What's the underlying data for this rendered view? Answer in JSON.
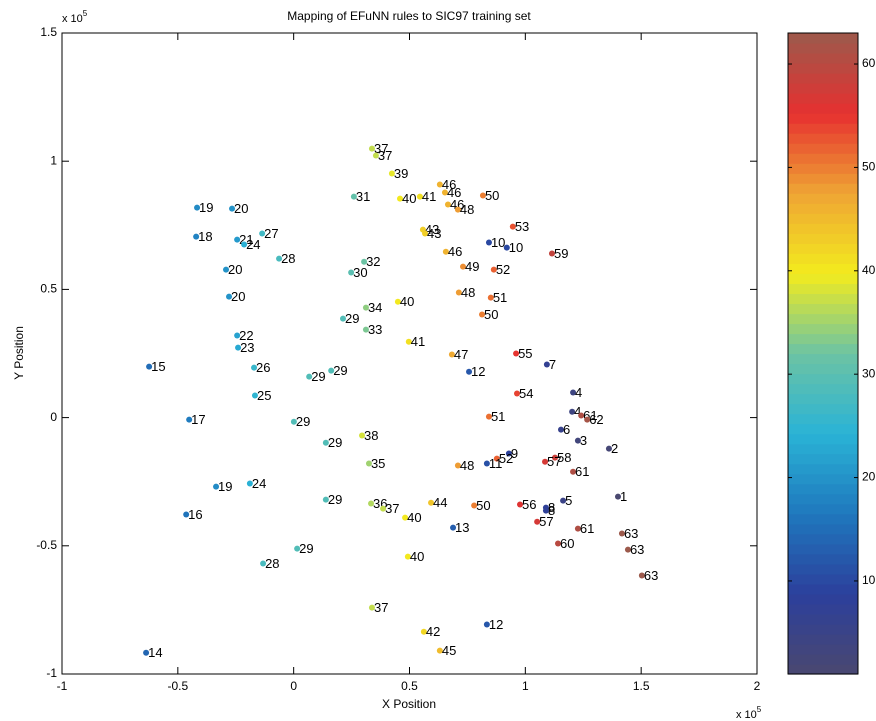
{
  "chart_data": {
    "type": "scatter",
    "title": "Mapping of EFuNN rules to SIC97 training set",
    "x_label": "X Position",
    "y_label": "Y Position",
    "axis_multiplier": {
      "base": "x 10",
      "exponent": "5"
    },
    "xlim": [
      -1,
      2
    ],
    "ylim": [
      -1,
      1.5
    ],
    "xticks": [
      -1,
      -0.5,
      0,
      0.5,
      1,
      1.5,
      2
    ],
    "yticks": [
      -1,
      -0.5,
      0,
      0.5,
      1,
      1.5
    ],
    "colorbar": {
      "lim": [
        1,
        63
      ],
      "ticks": [
        10,
        20,
        30,
        40,
        50,
        60
      ]
    },
    "colormap": [
      "#4a4870",
      "#2c3f9c",
      "#1f78bd",
      "#2ab3d6",
      "#6cc3a4",
      "#f3eb1e",
      "#efa534",
      "#e63030",
      "#9c5a4c"
    ],
    "x": [
      0.338,
      0.355,
      0.424,
      0.26,
      0.459,
      0.545,
      0.631,
      0.653,
      0.666,
      0.709,
      0.817,
      0.946,
      -0.417,
      -0.266,
      -0.136,
      -0.421,
      -0.244,
      -0.214,
      -0.063,
      -0.292,
      0.304,
      0.248,
      0.558,
      0.567,
      0.843,
      0.92,
      1.115,
      0.657,
      0.731,
      0.864,
      -0.279,
      0.713,
      0.851,
      0.45,
      0.312,
      0.213,
      0.813,
      0.312,
      -0.244,
      -0.24,
      0.497,
      0.683,
      0.96,
      1.093,
      -0.624,
      -0.171,
      0.162,
      0.067,
      0.757,
      1.206,
      -0.167,
      0.964,
      1.202,
      1.241,
      1.267,
      0.843,
      -0.451,
      0.001,
      1.154,
      1.227,
      1.361,
      0.139,
      0.295,
      0.929,
      0.877,
      1.128,
      1.085,
      0.325,
      0.709,
      0.834,
      1.206,
      -0.335,
      -0.189,
      1.4,
      1.163,
      0.139,
      0.334,
      0.386,
      0.593,
      0.779,
      0.977,
      1.089,
      1.089,
      -0.464,
      0.481,
      1.051,
      0.688,
      1.227,
      1.417,
      1.141,
      1.443,
      0.015,
      0.493,
      -0.132,
      1.503,
      0.338,
      0.834,
      0.562,
      0.631,
      -0.637
    ],
    "values": [
      1.049,
      1.022,
      0.952,
      0.862,
      0.854,
      0.862,
      0.909,
      0.878,
      0.831,
      0.811,
      0.866,
      0.745,
      0.819,
      0.815,
      0.718,
      0.706,
      0.694,
      0.675,
      0.62,
      0.577,
      0.608,
      0.566,
      0.733,
      0.718,
      0.683,
      0.663,
      0.64,
      0.647,
      0.589,
      0.577,
      0.472,
      0.488,
      0.468,
      0.452,
      0.429,
      0.386,
      0.402,
      0.343,
      0.32,
      0.273,
      0.296,
      0.246,
      0.25,
      0.207,
      0.199,
      0.195,
      0.183,
      0.16,
      0.179,
      0.098,
      0.086,
      0.094,
      0.023,
      0.008,
      -0.008,
      0.004,
      -0.008,
      -0.016,
      -0.047,
      -0.09,
      -0.121,
      -0.098,
      -0.07,
      -0.14,
      -0.16,
      -0.156,
      -0.172,
      -0.179,
      -0.187,
      -0.179,
      -0.211,
      -0.269,
      -0.257,
      -0.308,
      -0.324,
      -0.32,
      -0.335,
      -0.355,
      -0.332,
      -0.343,
      -0.339,
      -0.351,
      -0.363,
      -0.378,
      -0.39,
      -0.406,
      -0.429,
      -0.433,
      -0.452,
      -0.491,
      -0.515,
      -0.511,
      -0.542,
      -0.569,
      -0.616,
      -0.741,
      -0.807,
      -0.835,
      -0.909,
      -0.917
    ],
    "labels": [
      37,
      37,
      39,
      31,
      40,
      41,
      46,
      46,
      46,
      48,
      50,
      53,
      19,
      20,
      27,
      18,
      21,
      24,
      28,
      20,
      32,
      30,
      43,
      43,
      10,
      10,
      59,
      46,
      49,
      52,
      20,
      48,
      51,
      40,
      34,
      29,
      50,
      33,
      22,
      23,
      41,
      47,
      55,
      7,
      15,
      26,
      29,
      29,
      12,
      4,
      25,
      54,
      4,
      61,
      62,
      51,
      17,
      29,
      6,
      3,
      2,
      29,
      38,
      9,
      52,
      58,
      57,
      35,
      48,
      11,
      61,
      19,
      24,
      1,
      5,
      29,
      36,
      37,
      44,
      50,
      56,
      8,
      8,
      16,
      40,
      57,
      13,
      61,
      63,
      60,
      63,
      29,
      40,
      28,
      63,
      37,
      12,
      42,
      45,
      14
    ]
  }
}
